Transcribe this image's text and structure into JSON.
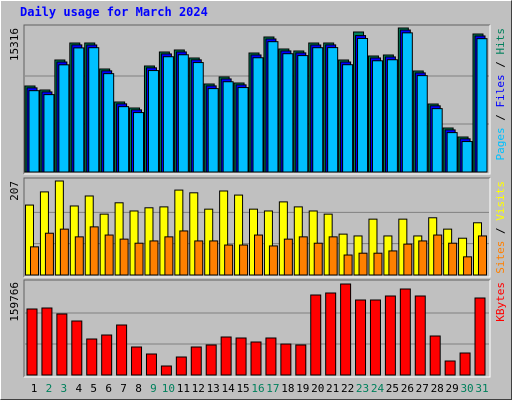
{
  "chart_data": [
    {
      "type": "bar",
      "title": "Daily usage for March 2024",
      "categories": [
        "1",
        "2",
        "3",
        "4",
        "5",
        "6",
        "7",
        "8",
        "9",
        "10",
        "11",
        "12",
        "13",
        "14",
        "15",
        "16",
        "17",
        "18",
        "19",
        "20",
        "21",
        "22",
        "23",
        "24",
        "25",
        "26",
        "27",
        "28",
        "29",
        "30",
        "31"
      ],
      "ylim": [
        0,
        15316
      ],
      "yticks": [
        15316
      ],
      "series": [
        {
          "name": "Pages",
          "color": "#00c0ff",
          "values": [
            8650,
            8230,
            11400,
            13200,
            13220,
            10460,
            6950,
            6320,
            10790,
            12260,
            12470,
            11640,
            8870,
            9600,
            8980,
            12150,
            13860,
            12580,
            12380,
            13220,
            13230,
            11410,
            14200,
            11830,
            11940,
            14800,
            10250,
            6740,
            4190,
            3240,
            14180
          ]
        },
        {
          "name": "Files",
          "color": "#0000ff",
          "values": [
            8950,
            8520,
            11700,
            13520,
            13510,
            10760,
            7250,
            6610,
            11080,
            12560,
            12770,
            11930,
            9160,
            9900,
            9270,
            12450,
            14150,
            12880,
            12670,
            13510,
            13520,
            11700,
            14510,
            12130,
            12240,
            15100,
            10540,
            7040,
            4480,
            3530,
            14470
          ]
        },
        {
          "name": "Hits",
          "color": "#00805c",
          "values": [
            9147,
            8721,
            11912,
            13720,
            13720,
            10955,
            7445,
            6807,
            11274,
            12763,
            12976,
            12125,
            9360,
            10104,
            9466,
            12657,
            14359,
            13082,
            12870,
            13720,
            13720,
            11912,
            14890,
            12338,
            12444,
            15316,
            10742,
            7232,
            4680,
            3723,
            14678
          ]
        }
      ]
    },
    {
      "type": "bar",
      "categories": [
        "1",
        "2",
        "3",
        "4",
        "5",
        "6",
        "7",
        "8",
        "9",
        "10",
        "11",
        "12",
        "13",
        "14",
        "15",
        "16",
        "17",
        "18",
        "19",
        "20",
        "21",
        "22",
        "23",
        "24",
        "25",
        "26",
        "27",
        "28",
        "29",
        "30",
        "31"
      ],
      "ylim": [
        0,
        207
      ],
      "yticks": [
        207
      ],
      "series": [
        {
          "name": "Sites",
          "color": "#ff8000",
          "values": [
            62,
            92,
            101,
            84,
            106,
            88,
            79,
            70,
            75,
            84,
            97,
            75,
            75,
            66,
            66,
            88,
            64,
            79,
            84,
            70,
            84,
            44,
            48,
            48,
            53,
            68,
            75,
            88,
            70,
            40,
            86
          ]
        },
        {
          "name": "Visits",
          "color": "#ffff00",
          "values": [
            154,
            183,
            207,
            152,
            174,
            134,
            159,
            141,
            148,
            150,
            187,
            181,
            145,
            185,
            176,
            145,
            141,
            161,
            150,
            141,
            134,
            90,
            86,
            123,
            86,
            123,
            86,
            126,
            101,
            81,
            115
          ]
        }
      ]
    },
    {
      "type": "bar",
      "categories": [
        "1",
        "2",
        "3",
        "4",
        "5",
        "6",
        "7",
        "8",
        "9",
        "10",
        "11",
        "12",
        "13",
        "14",
        "15",
        "16",
        "17",
        "18",
        "19",
        "20",
        "21",
        "22",
        "23",
        "24",
        "25",
        "26",
        "27",
        "28",
        "29",
        "30",
        "31"
      ],
      "category_label_colors": [
        "#000000",
        "#00805c",
        "#00805c",
        "#000000",
        "#000000",
        "#000000",
        "#000000",
        "#000000",
        "#00805c",
        "#00805c",
        "#000000",
        "#000000",
        "#000000",
        "#000000",
        "#000000",
        "#00805c",
        "#00805c",
        "#000000",
        "#000000",
        "#000000",
        "#000000",
        "#000000",
        "#00805c",
        "#00805c",
        "#000000",
        "#000000",
        "#000000",
        "#000000",
        "#000000",
        "#00805c",
        "#00805c"
      ],
      "ylim": [
        0,
        159766
      ],
      "yticks": [
        159766
      ],
      "series": [
        {
          "name": "KBytes",
          "color": "#ff0000",
          "values": [
            113382,
            115100,
            104792,
            92767,
            61845,
            68716,
            85896,
            48101,
            36076,
            15461,
            30922,
            48101,
            51537,
            65280,
            63563,
            56691,
            63563,
            53255,
            51537,
            137433,
            140869,
            156330,
            128844,
            128844,
            135716,
            147742,
            135716,
            66999,
            24051,
            37794,
            132280
          ]
        }
      ]
    }
  ]
}
